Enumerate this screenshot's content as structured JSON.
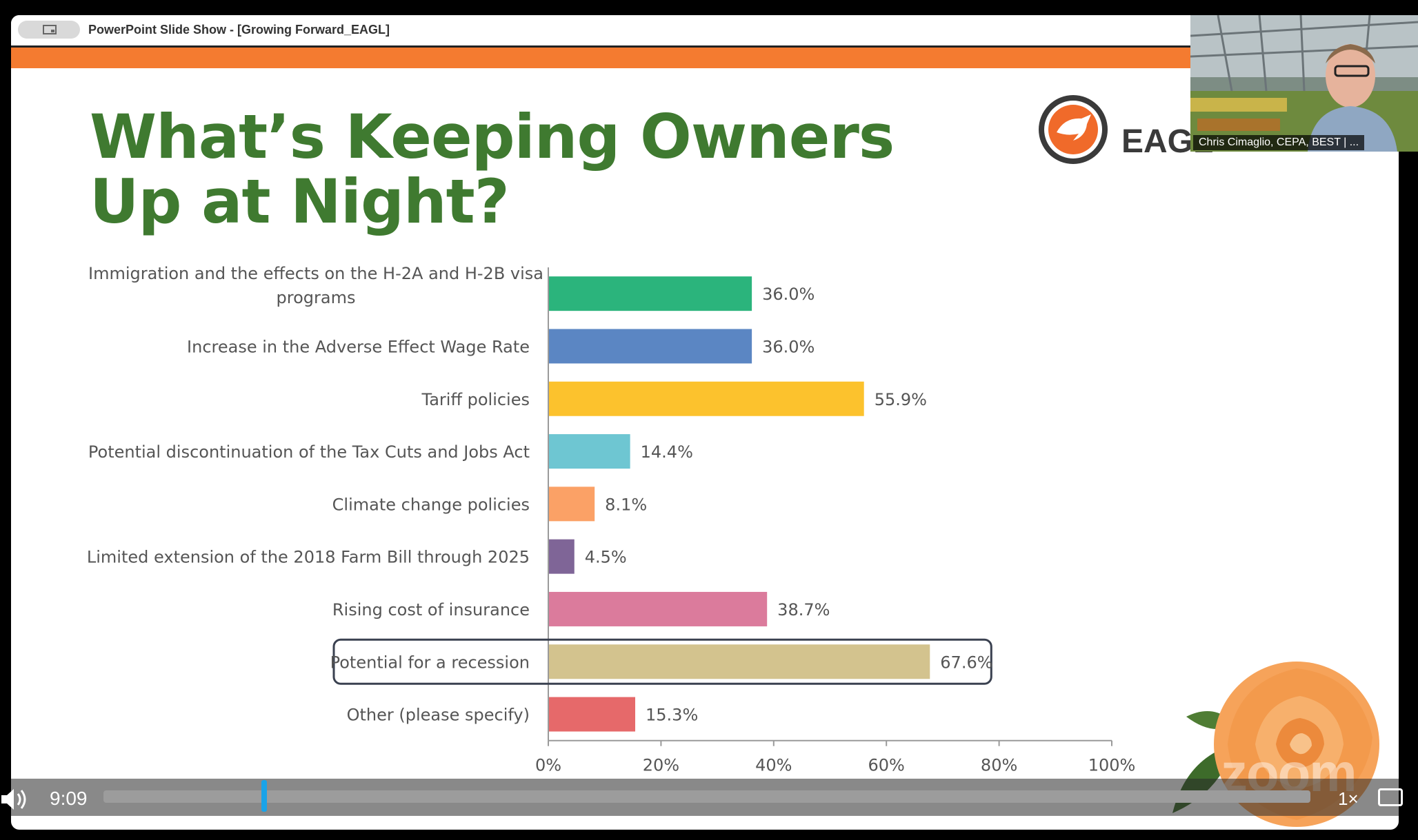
{
  "window": {
    "title": "PowerPoint Slide Show - [Growing Forward_EAGL]"
  },
  "slide": {
    "title_line1": "What’s Keeping Owners",
    "title_line2": "Up at Night?",
    "logo_text": "EAGL"
  },
  "video": {
    "speaker_name": "Chris Cimaglio, CEPA, BEST | ..."
  },
  "watermark": {
    "text": "zoom"
  },
  "player": {
    "time": "9:09",
    "speed": "1×",
    "progress": 0.09
  },
  "colors": {
    "title_green": "#3f7a30",
    "orange_band": "#f47b30",
    "seek_thumb": "#1aa3e8"
  },
  "chart_data": {
    "type": "bar",
    "orientation": "horizontal",
    "categories": [
      [
        "Immigration and the effects on the H-2A and H-2B visa",
        "programs"
      ],
      [
        "Increase in the Adverse Effect Wage Rate"
      ],
      [
        "Tariff policies"
      ],
      [
        "Potential discontinuation of the Tax Cuts and Jobs Act"
      ],
      [
        "Climate change policies"
      ],
      [
        "Limited extension of the 2018 Farm Bill through 2025"
      ],
      [
        "Rising cost of insurance"
      ],
      [
        "Potential for a recession"
      ],
      [
        "Other (please specify)"
      ]
    ],
    "values": [
      36.0,
      36.0,
      55.9,
      14.4,
      8.1,
      4.5,
      38.7,
      67.6,
      15.3
    ],
    "value_labels": [
      "36.0%",
      "36.0%",
      "55.9%",
      "14.4%",
      "8.1%",
      "4.5%",
      "38.7%",
      "67.6%",
      "15.3%"
    ],
    "bar_colors": [
      "#2bb47c",
      "#5b86c3",
      "#fcc22d",
      "#6ec6d2",
      "#fba166",
      "#7f6597",
      "#db7b9c",
      "#d3c38e",
      "#e6696a"
    ],
    "highlighted_index": 7,
    "xlim": [
      0,
      100
    ],
    "xticks": [
      0,
      20,
      40,
      60,
      80,
      100
    ],
    "xtick_labels": [
      "0%",
      "20%",
      "40%",
      "60%",
      "80%",
      "100%"
    ],
    "grid": false
  }
}
